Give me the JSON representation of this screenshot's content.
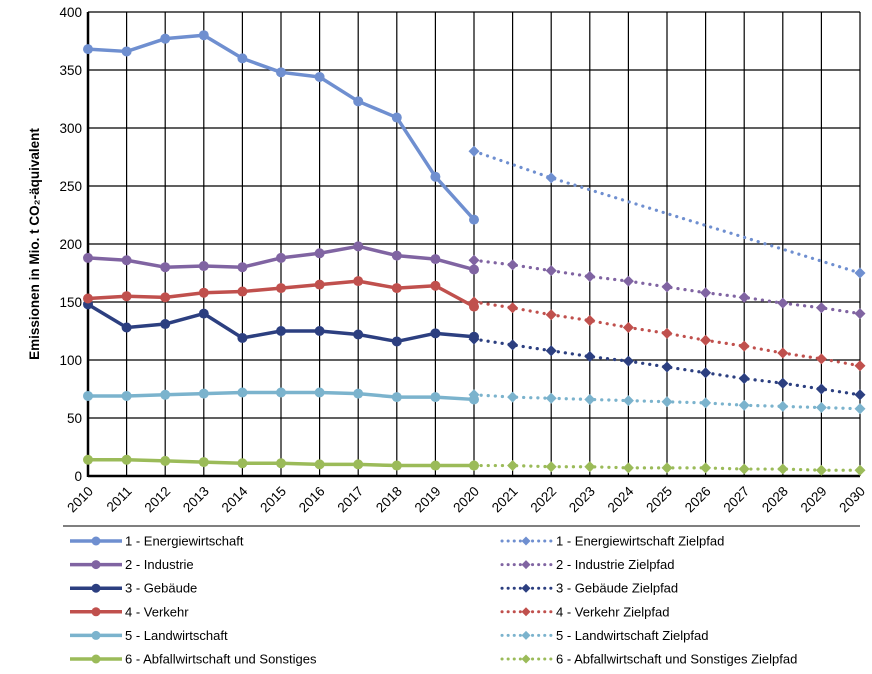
{
  "chart_data": {
    "type": "line",
    "title": "",
    "xlabel": "",
    "ylabel": "Emissionen in Mio. t CO₂-äquivalent",
    "ylim": [
      0,
      400
    ],
    "yticks": [
      "0",
      "50",
      "100",
      "150",
      "200",
      "250",
      "300",
      "350",
      "400"
    ],
    "x": [
      "2010",
      "2011",
      "2012",
      "2013",
      "2014",
      "2015",
      "2016",
      "2017",
      "2018",
      "2019",
      "2020",
      "2021",
      "2022",
      "2023",
      "2024",
      "2025",
      "2026",
      "2027",
      "2028",
      "2029",
      "2030"
    ],
    "grid": true,
    "legend_position": "bottom",
    "series": [
      {
        "name": "1 - Energiewirtschaft",
        "color": "#6f8fd0",
        "style": "solid",
        "marker": "circle",
        "values": [
          368,
          366,
          377,
          380,
          360,
          348,
          344,
          323,
          309,
          258,
          221,
          null,
          null,
          null,
          null,
          null,
          null,
          null,
          null,
          null,
          null
        ]
      },
      {
        "name": "1 - Energiewirtschaft Zielpfad",
        "color": "#6f8fd0",
        "style": "dotted",
        "marker": "diamond",
        "values": [
          null,
          null,
          null,
          null,
          null,
          null,
          null,
          null,
          null,
          null,
          280,
          null,
          257,
          null,
          null,
          null,
          null,
          null,
          null,
          null,
          175
        ]
      },
      {
        "name": "2 - Industrie",
        "color": "#8064a2",
        "style": "solid",
        "marker": "circle",
        "values": [
          188,
          186,
          180,
          181,
          180,
          188,
          192,
          198,
          190,
          187,
          178,
          null,
          null,
          null,
          null,
          null,
          null,
          null,
          null,
          null,
          null
        ]
      },
      {
        "name": "2 - Industrie Zielpfad",
        "color": "#8064a2",
        "style": "dotted",
        "marker": "diamond",
        "values": [
          null,
          null,
          null,
          null,
          null,
          null,
          null,
          null,
          null,
          null,
          186,
          182,
          177,
          172,
          168,
          163,
          158,
          154,
          149,
          145,
          140
        ]
      },
      {
        "name": "3 - Gebäude",
        "color": "#2c3f80",
        "style": "solid",
        "marker": "circle",
        "values": [
          148,
          128,
          131,
          140,
          119,
          125,
          125,
          122,
          116,
          123,
          120,
          null,
          null,
          null,
          null,
          null,
          null,
          null,
          null,
          null,
          null
        ]
      },
      {
        "name": "3 - Gebäude Zielpfad",
        "color": "#2c3f80",
        "style": "dotted",
        "marker": "diamond",
        "values": [
          null,
          null,
          null,
          null,
          null,
          null,
          null,
          null,
          null,
          null,
          118,
          113,
          108,
          103,
          99,
          94,
          89,
          84,
          80,
          75,
          70
        ]
      },
      {
        "name": "4 - Verkehr",
        "color": "#c0504d",
        "style": "solid",
        "marker": "circle",
        "values": [
          153,
          155,
          154,
          158,
          159,
          162,
          165,
          168,
          162,
          164,
          146,
          null,
          null,
          null,
          null,
          null,
          null,
          null,
          null,
          null,
          null
        ]
      },
      {
        "name": "4 - Verkehr Zielpfad",
        "color": "#c0504d",
        "style": "dotted",
        "marker": "diamond",
        "values": [
          null,
          null,
          null,
          null,
          null,
          null,
          null,
          null,
          null,
          null,
          150,
          145,
          139,
          134,
          128,
          123,
          117,
          112,
          106,
          101,
          95
        ]
      },
      {
        "name": "5 - Landwirtschaft",
        "color": "#7bb3cd",
        "style": "solid",
        "marker": "circle",
        "values": [
          69,
          69,
          70,
          71,
          72,
          72,
          72,
          71,
          68,
          68,
          66,
          null,
          null,
          null,
          null,
          null,
          null,
          null,
          null,
          null,
          null
        ]
      },
      {
        "name": "5 - Landwirtschaft Zielpfad",
        "color": "#7bb3cd",
        "style": "dotted",
        "marker": "diamond",
        "values": [
          null,
          null,
          null,
          null,
          null,
          null,
          null,
          null,
          null,
          null,
          70,
          68,
          67,
          66,
          65,
          64,
          63,
          61,
          60,
          59,
          58
        ]
      },
      {
        "name": "6 - Abfallwirtschaft und Sonstiges",
        "color": "#9bbb59",
        "style": "solid",
        "marker": "circle",
        "values": [
          14,
          14,
          13,
          12,
          11,
          11,
          10,
          10,
          9,
          9,
          9,
          null,
          null,
          null,
          null,
          null,
          null,
          null,
          null,
          null,
          null
        ]
      },
      {
        "name": "6 - Abfallwirtschaft und Sonstiges Zielpfad",
        "color": "#9bbb59",
        "style": "dotted",
        "marker": "diamond",
        "values": [
          null,
          null,
          null,
          null,
          null,
          null,
          null,
          null,
          null,
          null,
          9,
          9,
          8,
          8,
          7,
          7,
          7,
          6,
          6,
          5,
          5
        ]
      }
    ]
  }
}
